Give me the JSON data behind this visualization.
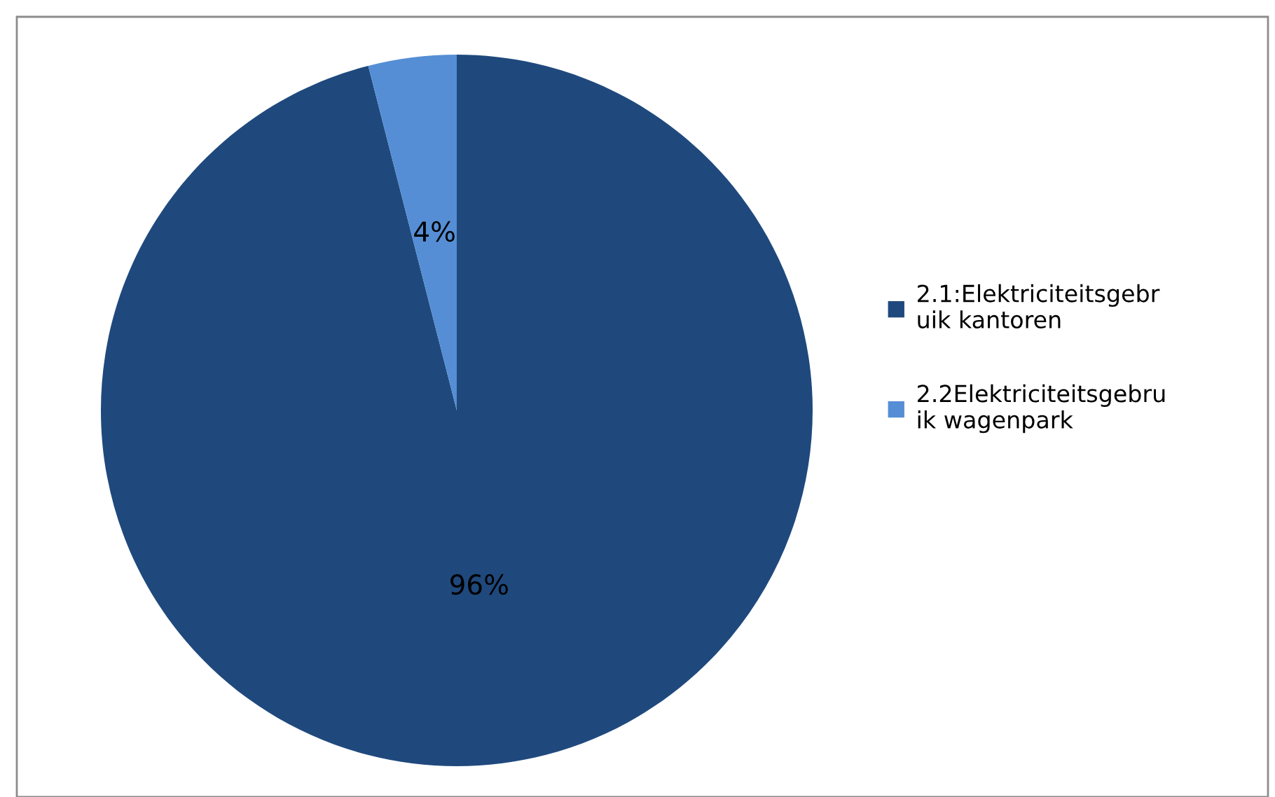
{
  "chart_data": {
    "type": "pie",
    "categories": [
      "2.1:Elektriciteitsgebr\nuik kantoren",
      "2.2Elektriciteitsgebru\nik wagenpark"
    ],
    "values": [
      96,
      4
    ],
    "value_labels": [
      "96%",
      "4%"
    ],
    "colors": [
      "#1f497d",
      "#558ed5"
    ],
    "legend": "right"
  }
}
